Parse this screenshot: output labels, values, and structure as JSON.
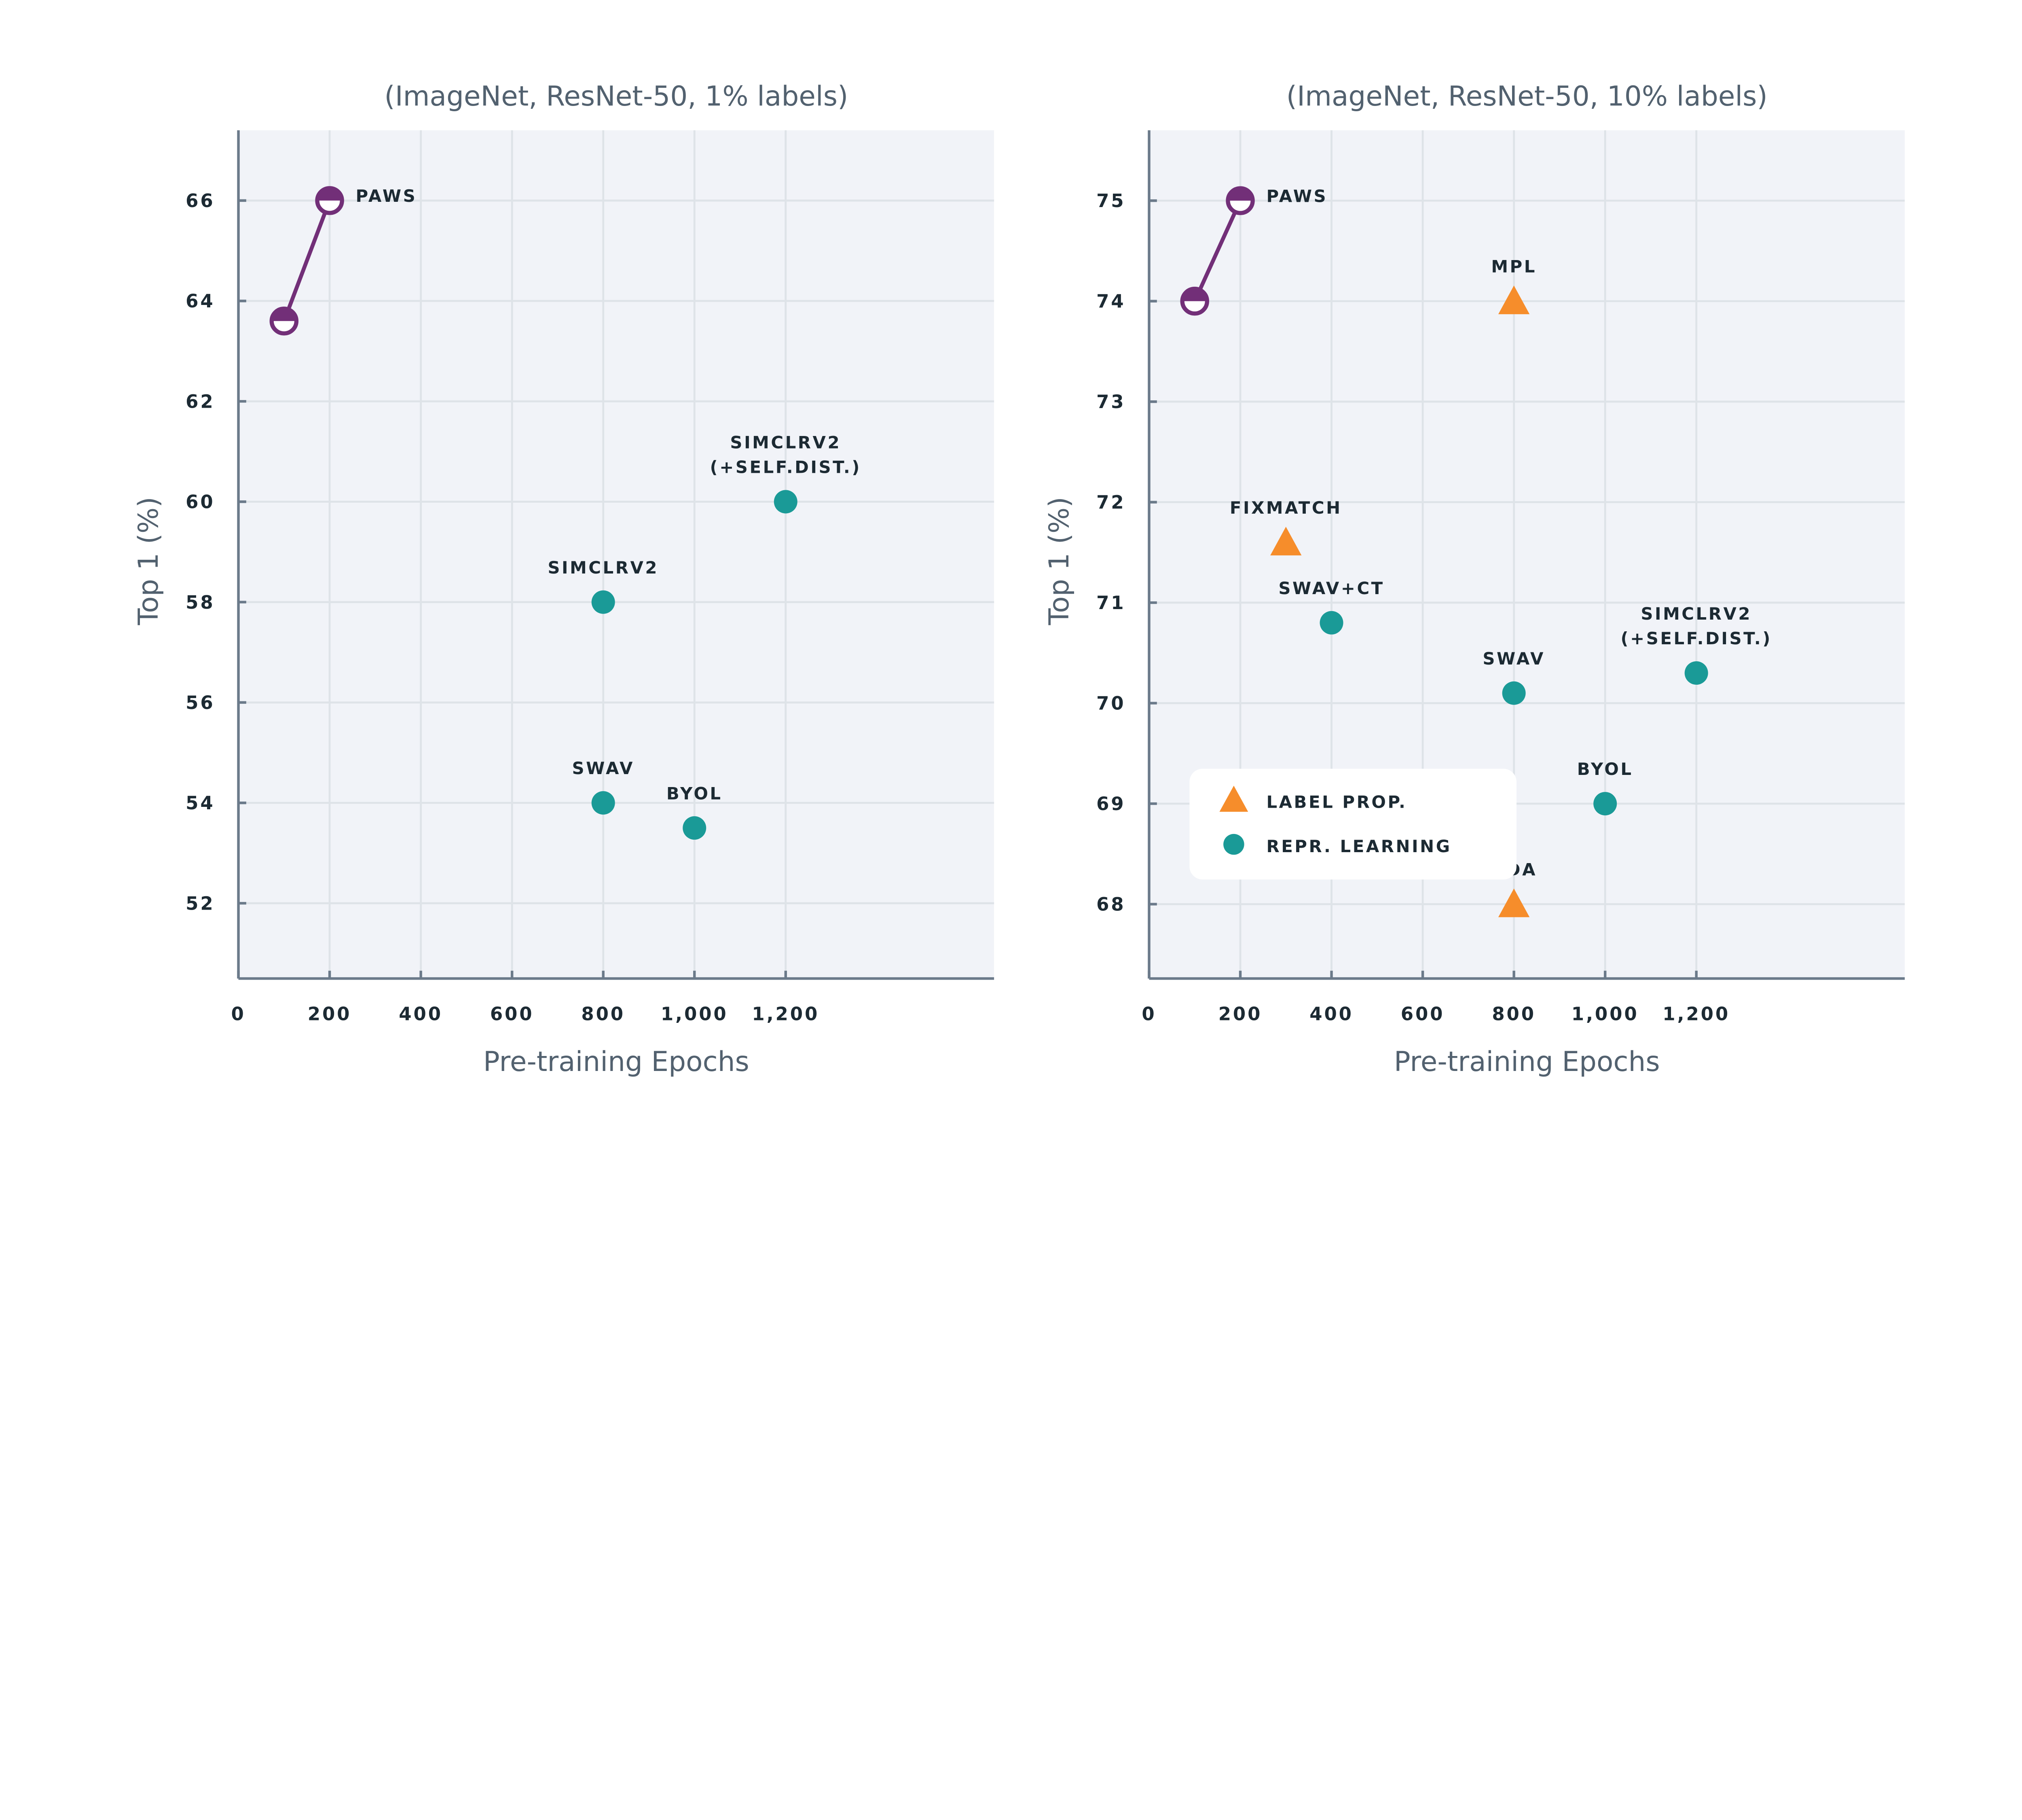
{
  "colors": {
    "paws": "#722F78",
    "repr_learning": "#1A9A97",
    "label_prop": "#F68D2B",
    "plot_background": "#F1F3F8",
    "grid": "#DEE3E8",
    "axis": "#6B7A8A",
    "text": "#1C2A33"
  },
  "chart_data": [
    {
      "type": "scatter",
      "title": "(ImageNet, ResNet-50, 1% labels)",
      "xlabel": "Pre-training Epochs",
      "ylabel": "Top 1 (%)",
      "xlim": [
        0,
        1657
      ],
      "ylim": [
        50.5,
        67.4
      ],
      "xticks": [
        0,
        200,
        400,
        600,
        800,
        1000,
        1200
      ],
      "xtick_labels": [
        "0",
        "200",
        "400",
        "600",
        "800",
        "1,000",
        "1,200"
      ],
      "yticks": [
        52,
        54,
        56,
        58,
        60,
        62,
        64,
        66
      ],
      "ytick_labels": [
        "52",
        "54",
        "56",
        "58",
        "60",
        "62",
        "64",
        "66"
      ],
      "grid": true,
      "paws": {
        "label": "PAWS",
        "points": [
          {
            "x": 100,
            "y": 63.6
          },
          {
            "x": 200,
            "y": 66.0
          }
        ]
      },
      "points": [
        {
          "label": "SIMCLRV2",
          "x": 800,
          "y": 58.0,
          "group": "repr_learning"
        },
        {
          "label": "SIMCLRV2\n(+SELF.DIST.)",
          "x": 1200,
          "y": 60.0,
          "group": "repr_learning"
        },
        {
          "label": "SWAV",
          "x": 800,
          "y": 54.0,
          "group": "repr_learning"
        },
        {
          "label": "BYOL",
          "x": 1000,
          "y": 53.5,
          "group": "repr_learning"
        }
      ]
    },
    {
      "type": "scatter",
      "title": "(ImageNet, ResNet-50, 10% labels)",
      "xlabel": "Pre-training Epochs",
      "ylabel": "Top 1 (%)",
      "xlim": [
        0,
        1657
      ],
      "ylim": [
        67.26,
        75.7
      ],
      "xticks": [
        0,
        200,
        400,
        600,
        800,
        1000,
        1200
      ],
      "xtick_labels": [
        "0",
        "200",
        "400",
        "600",
        "800",
        "1,000",
        "1,200"
      ],
      "yticks": [
        68,
        69,
        70,
        71,
        72,
        73,
        74,
        75
      ],
      "ytick_labels": [
        "68",
        "69",
        "70",
        "71",
        "72",
        "73",
        "74",
        "75"
      ],
      "grid": true,
      "paws": {
        "label": "PAWS",
        "points": [
          {
            "x": 100,
            "y": 74.0
          },
          {
            "x": 200,
            "y": 75.0
          }
        ]
      },
      "points": [
        {
          "label": "MPL",
          "x": 800,
          "y": 74.0,
          "group": "label_prop"
        },
        {
          "label": "FIXMATCH",
          "x": 300,
          "y": 71.6,
          "group": "label_prop"
        },
        {
          "label": "UDA",
          "x": 800,
          "y": 68.0,
          "group": "label_prop"
        },
        {
          "label": "SWAV+CT",
          "x": 400,
          "y": 70.8,
          "group": "repr_learning"
        },
        {
          "label": "SWAV",
          "x": 800,
          "y": 70.1,
          "group": "repr_learning"
        },
        {
          "label": "SIMCLRV2\n(+SELF.DIST.)",
          "x": 1200,
          "y": 70.3,
          "group": "repr_learning"
        },
        {
          "label": "BYOL",
          "x": 1000,
          "y": 69.0,
          "group": "repr_learning"
        }
      ],
      "legend": {
        "placement": "bottom-left",
        "entries": [
          {
            "label": "LABEL PROP.",
            "marker": "triangle",
            "group": "label_prop"
          },
          {
            "label": "REPR. LEARNING",
            "marker": "circle",
            "group": "repr_learning"
          }
        ]
      }
    }
  ]
}
